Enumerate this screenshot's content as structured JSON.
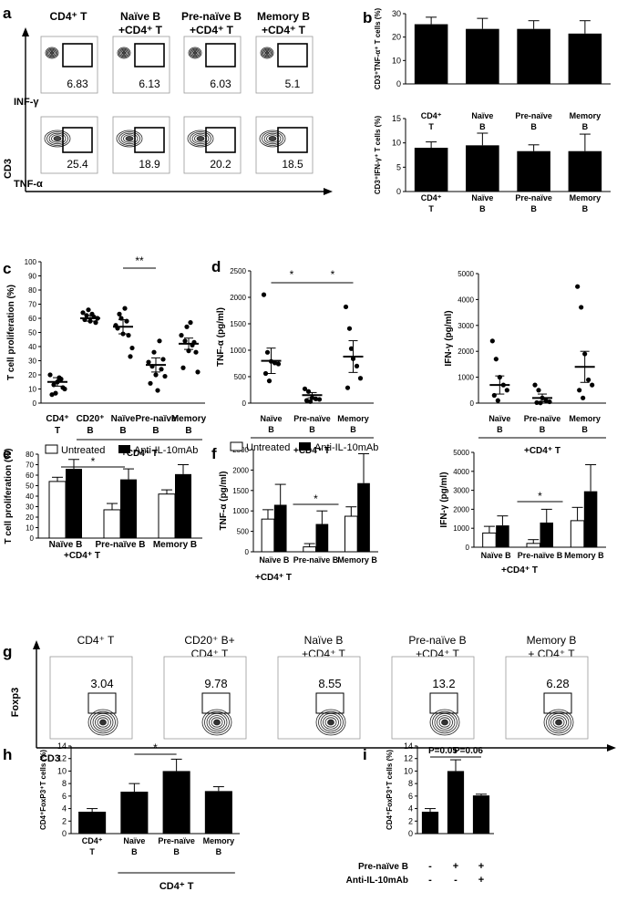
{
  "panel_letters": [
    "a",
    "b",
    "c",
    "d",
    "e",
    "f",
    "g",
    "h",
    "i"
  ],
  "chart_data": [
    {
      "id": "a",
      "type": "flow_cytometry_grid",
      "column_headers": [
        [
          "CD4⁺ T"
        ],
        [
          "Naïve B",
          "+CD4⁺ T"
        ],
        [
          "Pre-naïve B",
          "+CD4⁺ T"
        ],
        [
          "Memory B",
          "+CD4⁺ T"
        ]
      ],
      "rows": [
        {
          "marker": "INF-γ",
          "values": [
            "6.83",
            "6.13",
            "6.03",
            "5.1"
          ]
        },
        {
          "marker": "TNF-α",
          "values": [
            "25.4",
            "18.9",
            "20.2",
            "18.5"
          ]
        }
      ],
      "ylabel": "CD3"
    },
    {
      "id": "b_top",
      "type": "bar",
      "categories": [
        [
          "CD4⁺",
          "T"
        ],
        [
          "Naïve",
          "B"
        ],
        [
          "Pre-naïve",
          "B"
        ],
        [
          "Memory",
          "B"
        ]
      ],
      "values": [
        25.5,
        23.5,
        23.5,
        21.5
      ],
      "errors": [
        3,
        4.5,
        3.5,
        5.5
      ],
      "ylabel": "CD3⁺TNF-α⁺ T cells (%)",
      "ylim": [
        0,
        30
      ],
      "yticks": [
        "0",
        "10",
        "20",
        "30"
      ]
    },
    {
      "id": "b_bottom",
      "type": "bar",
      "categories": [
        [
          "CD4⁺",
          "T"
        ],
        [
          "Naïve",
          "B"
        ],
        [
          "Pre-naïve",
          "B"
        ],
        [
          "Memory",
          "B"
        ]
      ],
      "values": [
        9,
        9.5,
        8.3,
        8.3
      ],
      "errors": [
        1.2,
        2.5,
        1.3,
        3.5
      ],
      "ylabel": "CD3⁺IFN-γ⁺ T cells (%)",
      "ylim": [
        0,
        15
      ],
      "yticks": [
        "0",
        "5",
        "10",
        "15"
      ]
    },
    {
      "id": "c",
      "type": "scatter",
      "categories": [
        [
          "CD4⁺",
          "T"
        ],
        [
          "CD20⁺",
          "B"
        ],
        [
          "Naïve",
          "B"
        ],
        [
          "Pre-naïve",
          "B"
        ],
        [
          "Memory",
          "B"
        ]
      ],
      "points": [
        [
          20,
          13,
          15,
          17,
          10,
          6,
          7,
          18,
          11
        ],
        [
          64,
          62,
          58,
          61,
          60,
          59,
          66,
          63,
          57
        ],
        [
          55,
          63,
          49,
          58,
          33,
          53,
          60,
          67,
          48,
          39
        ],
        [
          29,
          26,
          20,
          44,
          31,
          14,
          36,
          9,
          24,
          19
        ],
        [
          48,
          44,
          37,
          41,
          36,
          25,
          54,
          57,
          43,
          22
        ]
      ],
      "means": [
        15,
        60,
        54,
        27,
        42
      ],
      "sems": [
        3,
        2,
        5,
        5,
        4
      ],
      "ylabel": "T cell proliferation (%)",
      "ylim": [
        0,
        100
      ],
      "yticks": [
        "0",
        "10",
        "20",
        "30",
        "40",
        "50",
        "60",
        "70",
        "80",
        "90",
        "100"
      ],
      "annotation": "**",
      "group_label": "+CD4⁺ T"
    },
    {
      "id": "d_left",
      "type": "scatter",
      "categories": [
        [
          "Naïve",
          "B"
        ],
        [
          "Pre-naïve",
          "B"
        ],
        [
          "Memory",
          "B"
        ]
      ],
      "points": [
        [
          2050,
          960,
          790,
          760,
          740,
          560,
          420
        ],
        [
          270,
          220,
          100,
          80,
          70,
          50,
          30
        ],
        [
          1820,
          1410,
          840,
          700,
          470,
          290,
          1030
        ]
      ],
      "means": [
        800,
        150,
        880
      ],
      "sems": [
        240,
        50,
        300
      ],
      "ylabel": "TNF-α (pg/ml)",
      "ylim": [
        0,
        2500
      ],
      "yticks": [
        "0",
        "500",
        "1000",
        "1500",
        "2000",
        "2500"
      ],
      "annotations": [
        "*",
        "*"
      ],
      "group_label": "+CD4⁺ T"
    },
    {
      "id": "d_right",
      "type": "scatter",
      "categories": [
        [
          "Naïve",
          "B"
        ],
        [
          "Pre-naïve",
          "B"
        ],
        [
          "Memory",
          "B"
        ]
      ],
      "points": [
        [
          2400,
          1700,
          1000,
          700,
          500,
          300,
          100
        ],
        [
          700,
          500,
          200,
          100,
          50,
          20,
          10
        ],
        [
          4500,
          3700,
          1900,
          900,
          700,
          500,
          200
        ]
      ],
      "means": [
        700,
        200,
        1400
      ],
      "sems": [
        350,
        150,
        600
      ],
      "ylabel": "IFN-γ (pg/ml)",
      "ylim": [
        0,
        5000
      ],
      "yticks": [
        "0",
        "1000",
        "2000",
        "3000",
        "4000",
        "5000"
      ],
      "group_label": "+CD4⁺ T"
    },
    {
      "id": "e",
      "type": "bar",
      "categories": [
        "Naïve B",
        "Pre-naïve B",
        "Memory B"
      ],
      "series": [
        {
          "name": "Untreated",
          "values": [
            54,
            27,
            42
          ],
          "errors": [
            4,
            6,
            4
          ]
        },
        {
          "name": "Anti-IL-10mAb",
          "values": [
            66,
            56,
            61
          ],
          "errors": [
            9,
            10,
            9
          ]
        }
      ],
      "ylabel": "T cell proliferation (%)",
      "ylim": [
        0,
        80
      ],
      "yticks": [
        "0",
        "10",
        "20",
        "30",
        "40",
        "50",
        "60",
        "70",
        "80"
      ],
      "annotation": "*",
      "group_label": "+CD4⁺ T"
    },
    {
      "id": "f_left",
      "type": "bar",
      "categories": [
        "Naïve B",
        "Pre-naïve B",
        "Memory B"
      ],
      "series": [
        {
          "name": "Untreated",
          "values": [
            800,
            120,
            870
          ],
          "errors": [
            230,
            80,
            230
          ]
        },
        {
          "name": "Anti-IL-10mAb",
          "values": [
            1150,
            680,
            1680
          ],
          "errors": [
            500,
            320,
            720
          ]
        }
      ],
      "ylabel": "TNF-α (pg/ml)",
      "ylim": [
        0,
        2500
      ],
      "yticks": [
        "0",
        "500",
        "1000",
        "1500",
        "2000",
        "2500"
      ],
      "annotation": "*",
      "group_label": "+CD4⁺ T"
    },
    {
      "id": "f_right",
      "type": "bar",
      "categories": [
        "Naïve B",
        "Pre-naïve B",
        "Memory B"
      ],
      "series": [
        {
          "name": "Untreated",
          "values": [
            750,
            200,
            1400
          ],
          "errors": [
            350,
            200,
            700
          ]
        },
        {
          "name": "Anti-IL-10mAb",
          "values": [
            1150,
            1300,
            2950
          ],
          "errors": [
            500,
            700,
            1400
          ]
        }
      ],
      "ylabel": "IFN-γ (pg/ml)",
      "ylim": [
        0,
        5000
      ],
      "yticks": [
        "0",
        "1000",
        "2000",
        "3000",
        "4000",
        "5000"
      ],
      "annotation": "*",
      "group_label": "+CD4⁺ T"
    },
    {
      "id": "g",
      "type": "flow_cytometry_row",
      "column_headers": [
        [
          "CD4⁺ T"
        ],
        [
          "CD20⁺ B+",
          "CD4⁺ T"
        ],
        [
          "Naïve B",
          "+CD4⁺ T"
        ],
        [
          "Pre-naïve B",
          "+CD4⁺ T"
        ],
        [
          "Memory B",
          "+ CD4⁺ T"
        ]
      ],
      "values": [
        "3.04",
        "9.78",
        "8.55",
        "13.2",
        "6.28"
      ],
      "xlabel": "CD3",
      "ylabel": "Foxp3"
    },
    {
      "id": "h",
      "type": "bar",
      "categories": [
        [
          "CD4⁺",
          "T"
        ],
        [
          "Naïve",
          "B"
        ],
        [
          "Pre-naïve",
          "B"
        ],
        [
          "Memory",
          "B"
        ]
      ],
      "values": [
        3.5,
        6.7,
        10,
        6.8
      ],
      "errors": [
        0.5,
        1.3,
        1.9,
        0.7
      ],
      "ylabel": "CD4⁺FoxP3⁺T cells (%)",
      "ylim": [
        0,
        14
      ],
      "yticks": [
        "0",
        "2",
        "4",
        "6",
        "8",
        "10",
        "12",
        "14"
      ],
      "annotation": "*",
      "group_label": "CD4⁺ T"
    },
    {
      "id": "i",
      "type": "bar",
      "values": [
        3.5,
        10,
        6.1
      ],
      "errors": [
        0.5,
        1.8,
        0.2
      ],
      "ylabel": "CD4⁺FoxP3⁺T cells (%)",
      "ylim": [
        0,
        14
      ],
      "yticks": [
        "0",
        "2",
        "4",
        "6",
        "8",
        "10",
        "12",
        "14"
      ],
      "annotations": [
        "P=0.05",
        "P=0.06"
      ],
      "factor_rows": [
        {
          "label": "Pre-naïve B",
          "marks": [
            "-",
            "+",
            "+"
          ]
        },
        {
          "label": "Anti-IL-10mAb",
          "marks": [
            "-",
            "-",
            "+"
          ]
        }
      ]
    }
  ]
}
